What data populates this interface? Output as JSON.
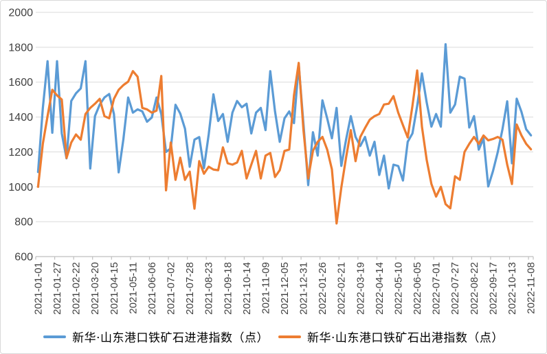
{
  "chart_data": {
    "type": "line",
    "grid": "horizontal",
    "legend_position": "bottom",
    "background": "#FFFFFF",
    "gridline_color": "#D9D9D9",
    "axis_color": "#BFBFBF",
    "tick_label_color": "#404040",
    "y_axis": {
      "min": 600,
      "max": 2000,
      "step": 200
    },
    "x_axis": {
      "ticks_every_n_points": 4,
      "tick_labels": [
        "2021-01-01",
        "2021-01-27",
        "2021-02-22",
        "2021-03-20",
        "2021-04-15",
        "2021-05-11",
        "2021-06-06",
        "2021-07-02",
        "2021-07-28",
        "2021-08-23",
        "2021-09-18",
        "2021-10-14",
        "2021-11-09",
        "2021-12-05",
        "2021-12-31",
        "2022-01-26",
        "2022-02-21",
        "2022-03-19",
        "2022-04-14",
        "2022-05-10",
        "2022-06-05",
        "2022-07-01",
        "2022-07-27",
        "2022-08-22",
        "2022-09-17",
        "2022-10-13",
        "2022-11-08"
      ]
    },
    "series": [
      {
        "name": "新华·山东港口铁矿石进港指数（点）",
        "color": "#5B9BD5",
        "values": [
          1085,
          1450,
          1720,
          1310,
          1720,
          1306,
          1163,
          1492,
          1536,
          1564,
          1720,
          1105,
          1405,
          1471,
          1512,
          1532,
          1417,
          1083,
          1274,
          1512,
          1425,
          1444,
          1432,
          1373,
          1397,
          1512,
          1417,
          1200,
          1220,
          1470,
          1420,
          1333,
          1115,
          1270,
          1285,
          1107,
          1300,
          1530,
          1377,
          1417,
          1258,
          1425,
          1492,
          1456,
          1476,
          1306,
          1425,
          1452,
          1325,
          1663,
          1432,
          1258,
          1393,
          1432,
          1365,
          1700,
          1360,
          1010,
          1313,
          1179,
          1496,
          1393,
          1278,
          1452,
          1120,
          1270,
          1405,
          1286,
          1234,
          1286,
          1179,
          1258,
          1068,
          1179,
          991,
          1127,
          1119,
          1036,
          1258,
          1306,
          1464,
          1650,
          1484,
          1345,
          1417,
          1345,
          1817,
          1425,
          1472,
          1631,
          1620,
          1340,
          1405,
          1213,
          1278,
          1002,
          1090,
          1198,
          1330,
          1490,
          1135,
          1505,
          1430,
          1330,
          1295
        ]
      },
      {
        "name": "新华·山东港口铁矿石出港指数（点）",
        "color": "#ED7D31",
        "values": [
          1000,
          1246,
          1405,
          1556,
          1524,
          1500,
          1165,
          1254,
          1300,
          1270,
          1417,
          1452,
          1476,
          1504,
          1405,
          1393,
          1504,
          1556,
          1583,
          1603,
          1663,
          1631,
          1452,
          1444,
          1425,
          1437,
          1635,
          980,
          1254,
          1040,
          1167,
          1040,
          1087,
          875,
          1147,
          1075,
          1115,
          1099,
          1095,
          1226,
          1135,
          1127,
          1139,
          1206,
          1048,
          1127,
          1206,
          1048,
          1179,
          1194,
          1056,
          1095,
          1206,
          1214,
          1524,
          1710,
          1325,
          1048,
          1206,
          1258,
          1286,
          1214,
          1100,
          790,
          996,
          1167,
          1325,
          1147,
          1286,
          1337,
          1385,
          1405,
          1417,
          1472,
          1476,
          1520,
          1425,
          1353,
          1283,
          1464,
          1667,
          1345,
          1155,
          1016,
          944,
          1000,
          901,
          877,
          1060,
          1040,
          1200,
          1246,
          1286,
          1246,
          1294,
          1266,
          1274,
          1286,
          1270,
          1127,
          1016,
          1357,
          1295,
          1246,
          1215
        ]
      }
    ]
  }
}
